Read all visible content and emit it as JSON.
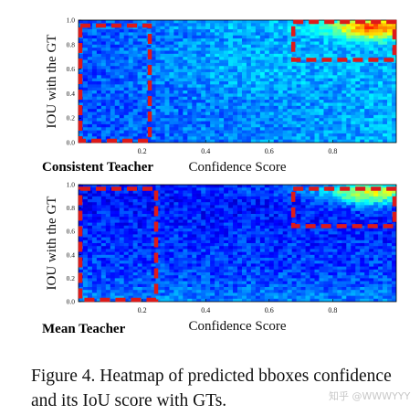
{
  "chart_data": [
    {
      "type": "heatmap",
      "title": "Consistent Teacher",
      "xlabel": "Confidence Score",
      "ylabel": "IOU with the GT",
      "xlim": [
        0.0,
        1.0
      ],
      "ylim": [
        0.0,
        1.0
      ],
      "xticks": [
        "0.2",
        "0.4",
        "0.6",
        "0.8"
      ],
      "yticks": [
        "0.0",
        "0.2",
        "0.4",
        "0.6",
        "0.8",
        "1.0"
      ],
      "colormap": "jet",
      "highlight_boxes": [
        {
          "x": [
            0.0,
            0.23
          ],
          "y": [
            0.0,
            0.97
          ],
          "color": "#dd1a1a",
          "style": "dashed"
        },
        {
          "x": [
            0.67,
            1.0
          ],
          "y": [
            0.66,
            1.0
          ],
          "color": "#dd1a1a",
          "style": "dashed"
        }
      ]
    },
    {
      "type": "heatmap",
      "title": "Mean Teacher",
      "xlabel": "Confidence Score",
      "ylabel": "IOU with the GT",
      "xlim": [
        0.0,
        1.0
      ],
      "ylim": [
        0.0,
        1.0
      ],
      "xticks": [
        "0.2",
        "0.4",
        "0.6",
        "0.8"
      ],
      "yticks": [
        "0.0",
        "0.2",
        "0.4",
        "0.6",
        "0.8",
        "1.0"
      ],
      "colormap": "jet",
      "highlight_boxes": [
        {
          "x": [
            0.0,
            0.25
          ],
          "y": [
            0.0,
            0.98
          ],
          "color": "#dd1a1a",
          "style": "dashed"
        },
        {
          "x": [
            0.67,
            1.0
          ],
          "y": [
            0.63,
            0.98
          ],
          "color": "#dd1a1a",
          "style": "dashed"
        }
      ]
    }
  ],
  "caption": "Figure 4. Heatmap of predicted bboxes confidence and its IoU score with GTs.",
  "watermark": "知乎 @WWWYYY"
}
